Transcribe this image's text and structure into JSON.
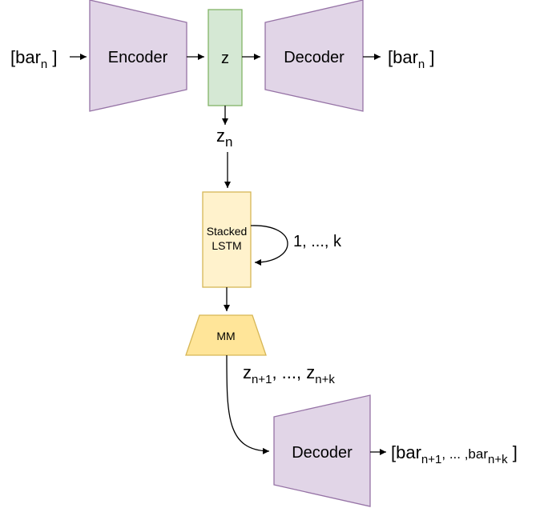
{
  "nodes": {
    "encoder": {
      "label": "Encoder"
    },
    "latent": {
      "label": "z"
    },
    "decoder_top": {
      "label": "Decoder"
    },
    "lstm": {
      "line1": "Stacked",
      "line2": "LSTM"
    },
    "mm": {
      "label": "MM"
    },
    "decoder_bottom": {
      "label": "Decoder"
    }
  },
  "labels": {
    "input": {
      "open": "[bar",
      "sub": "n",
      "close": " ]"
    },
    "output_top": {
      "open": "[bar",
      "sub": "n",
      "close": " ]"
    },
    "zn": {
      "base": "z",
      "sub": "n"
    },
    "loop": "1, ..., k",
    "predicted": {
      "z1": "z",
      "sub1": "n+1",
      "mid": ", ..., z",
      "sub2": "n+k"
    },
    "output_bottom": {
      "open": "[bar",
      "sub1": "n+1",
      "mid": ", ... ,bar",
      "sub2": "n+k",
      "close": " ]"
    }
  },
  "colors": {
    "purple_fill": "#e1d5e7",
    "purple_stroke": "#9673a6",
    "green_fill": "#d5e8d4",
    "green_stroke": "#82b366",
    "lstm_fill": "#fff2cc",
    "lstm_stroke": "#d6b656",
    "mm_fill": "#ffe599",
    "mm_stroke": "#d6b656"
  }
}
